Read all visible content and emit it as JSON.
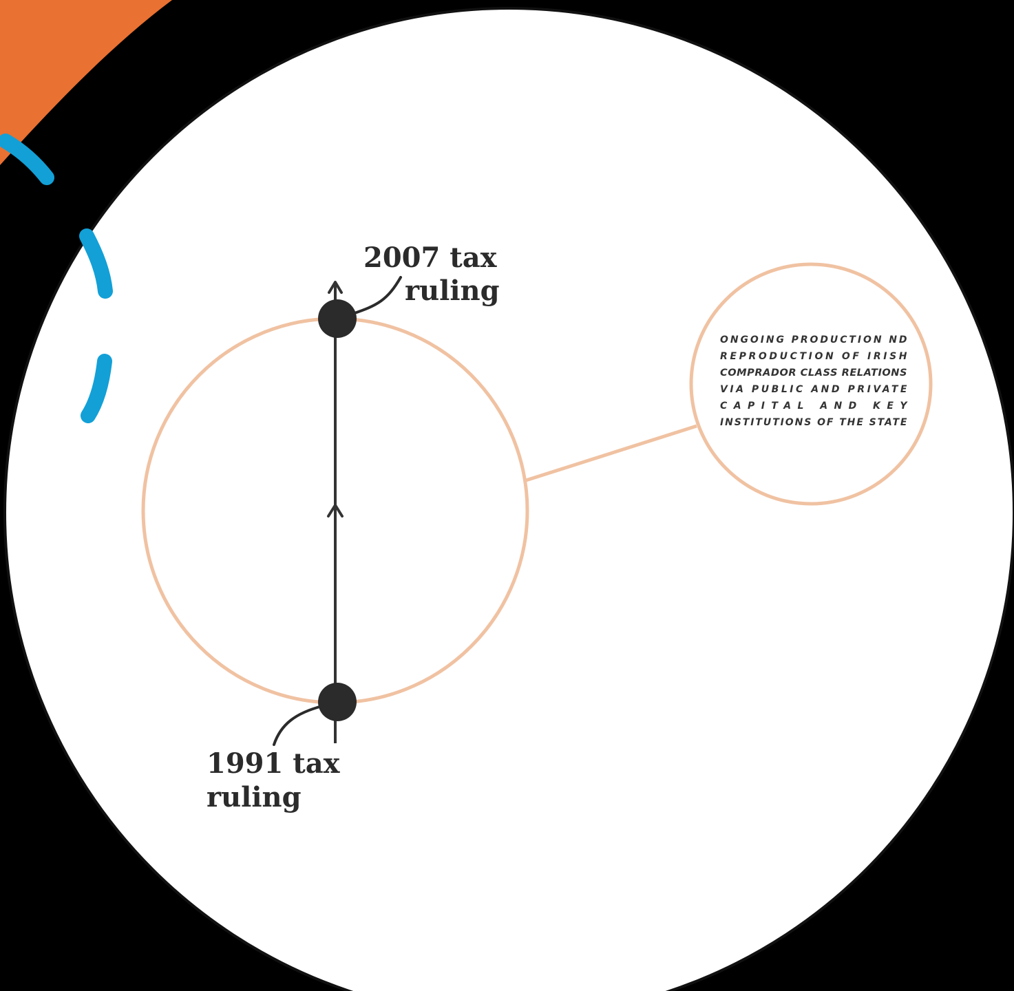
{
  "diagram": {
    "top_event_label": [
      "2007 tax",
      "ruling"
    ],
    "bottom_event_label": [
      "1991 tax",
      "ruling"
    ],
    "note_lines": [
      "ONGOING PRODUCTION ND",
      "REPRODUCTION OF IRISH",
      "COMPRADOR CLASS RELATIONS",
      "VIA PUBLIC AND PRIVATE",
      "CAPITAL AND KEY",
      "INSTITUTIONS OF THE STATE"
    ]
  },
  "colors": {
    "background": "#000000",
    "main_circle_fill": "#ffffff",
    "orange_accent": "#e97132",
    "blue_dashes": "#12a0d7",
    "peach_circle": "#f0c2a2",
    "timeline_line": "#333333",
    "event_dot": "#2b2b2b"
  }
}
